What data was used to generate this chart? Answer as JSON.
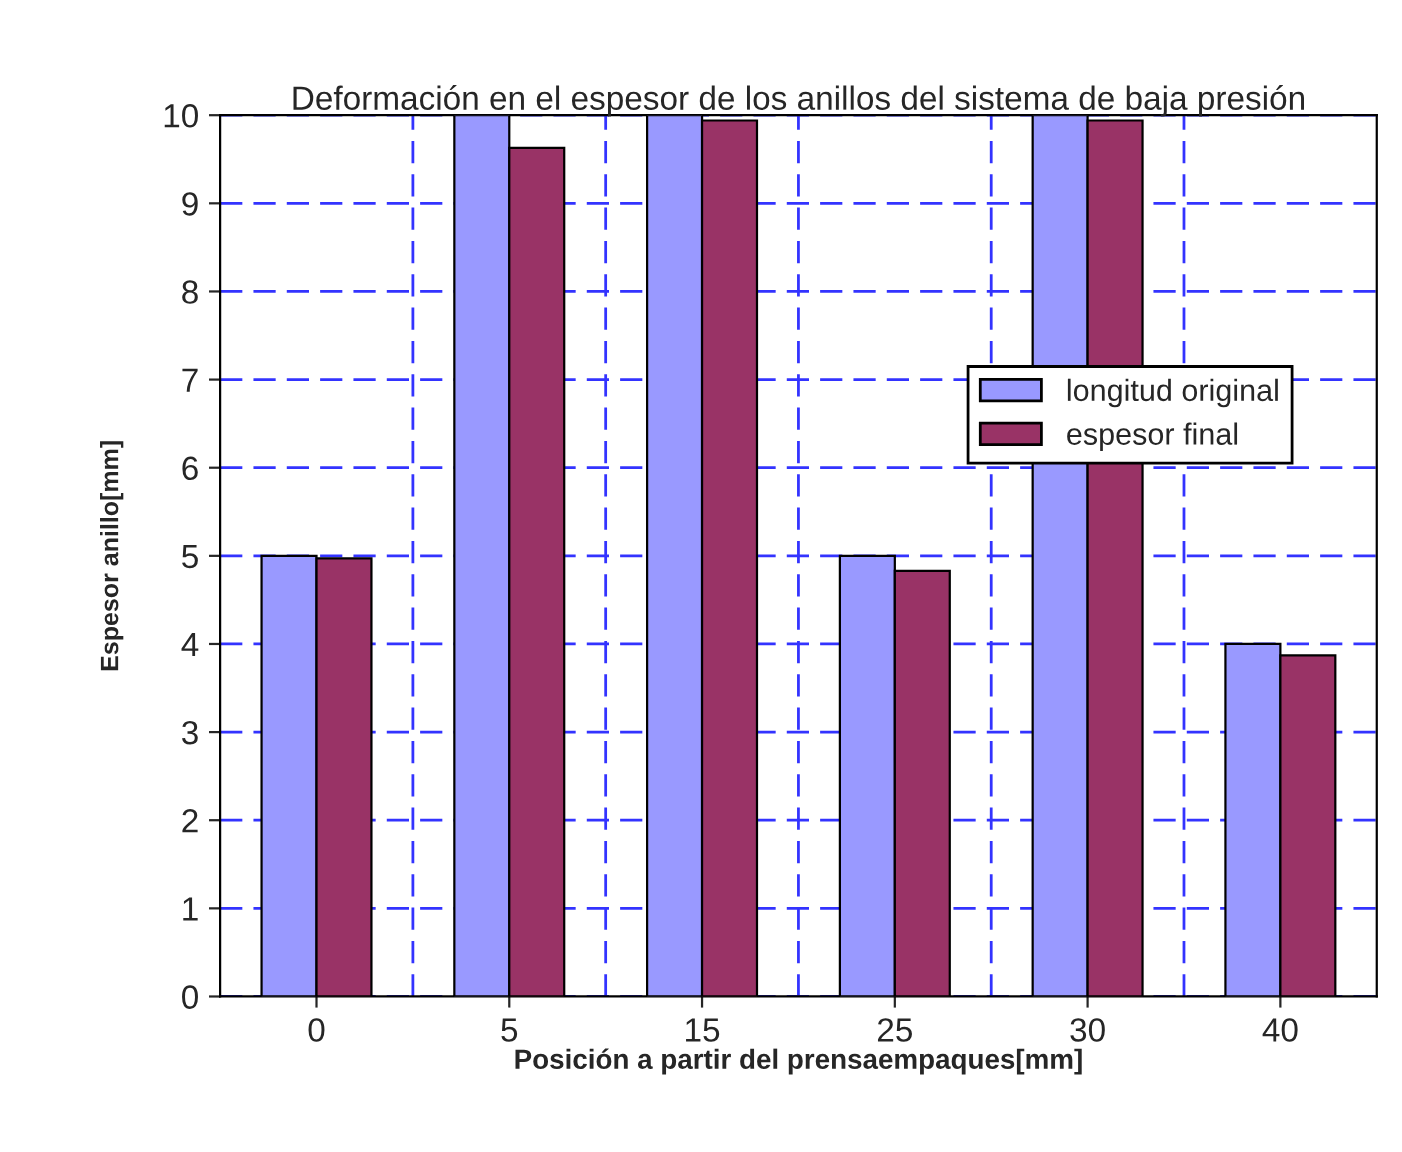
{
  "chart_data": {
    "type": "bar",
    "title": "Deformación en el espesor de los anillos del sistema de baja presión",
    "xlabel": "Posición a partir del prensaempaques[mm]",
    "ylabel": "Espesor anillo[mm]",
    "categories": [
      "0",
      "5",
      "15",
      "25",
      "30",
      "40"
    ],
    "series": [
      {
        "name": "longitud original",
        "color": "#9999ff",
        "values": [
          5,
          10,
          10,
          5,
          10,
          4
        ]
      },
      {
        "name": "espesor final",
        "color": "#993366",
        "values": [
          4.97,
          9.63,
          9.94,
          4.83,
          9.94,
          3.87
        ]
      }
    ],
    "ylim": [
      0,
      10
    ],
    "yticks": [
      0,
      1,
      2,
      3,
      4,
      5,
      6,
      7,
      8,
      9,
      10
    ],
    "grid": true,
    "legend": "right"
  }
}
